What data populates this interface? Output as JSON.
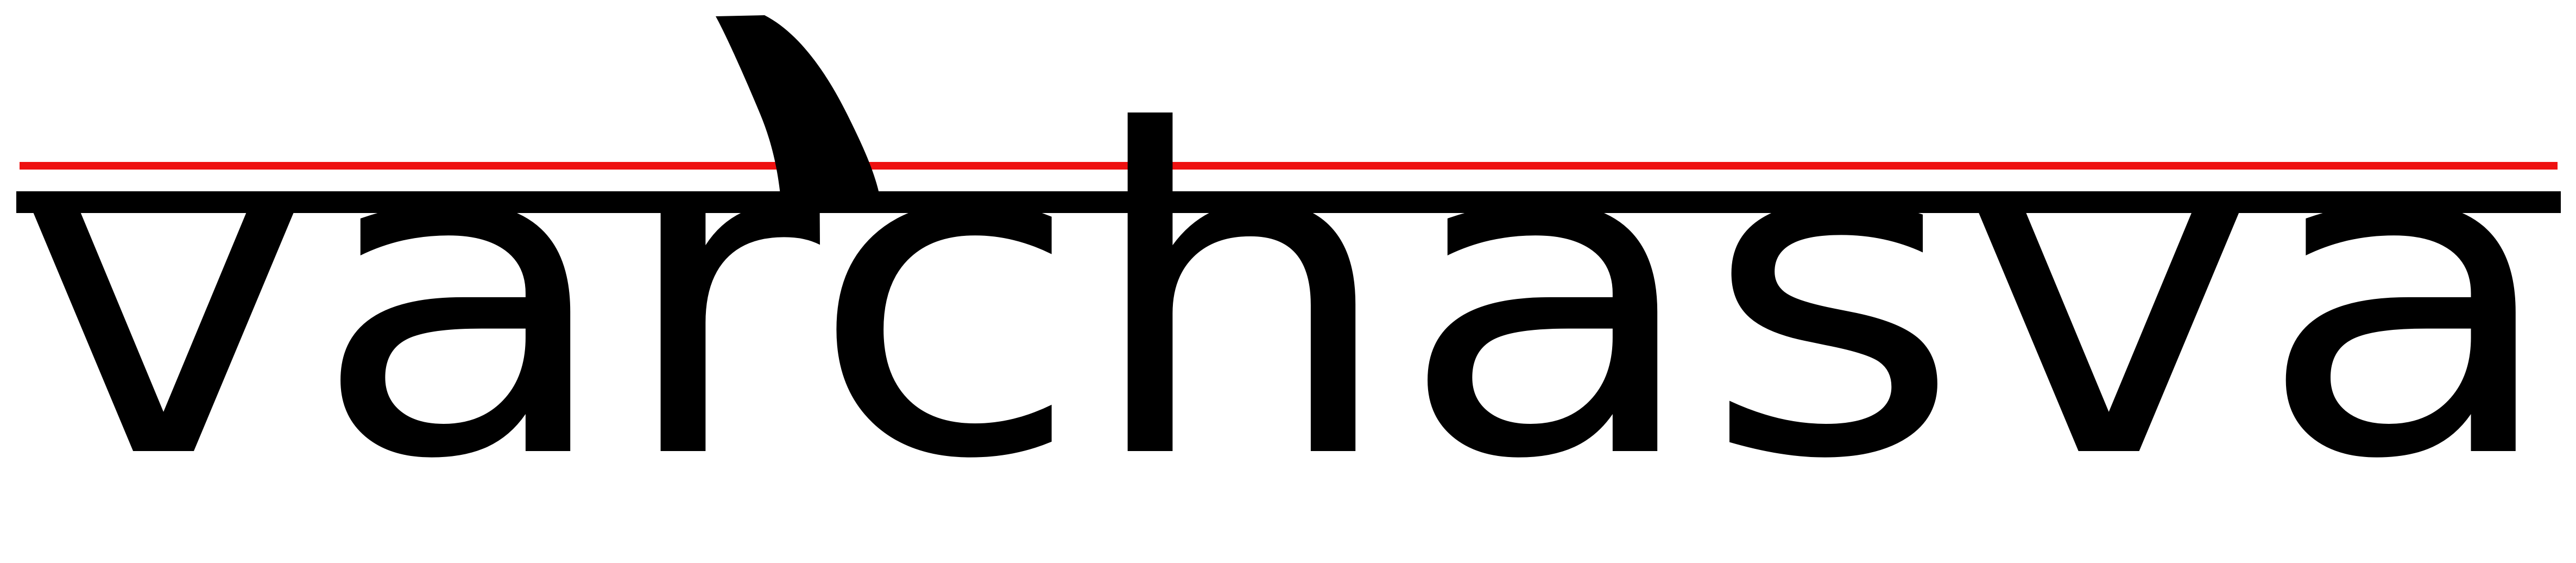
{
  "logo": {
    "text": "varchasva",
    "colors": {
      "text": "#000000",
      "headbar": "#000000",
      "accent_line": "#ee1111",
      "background": "#ffffff"
    }
  }
}
